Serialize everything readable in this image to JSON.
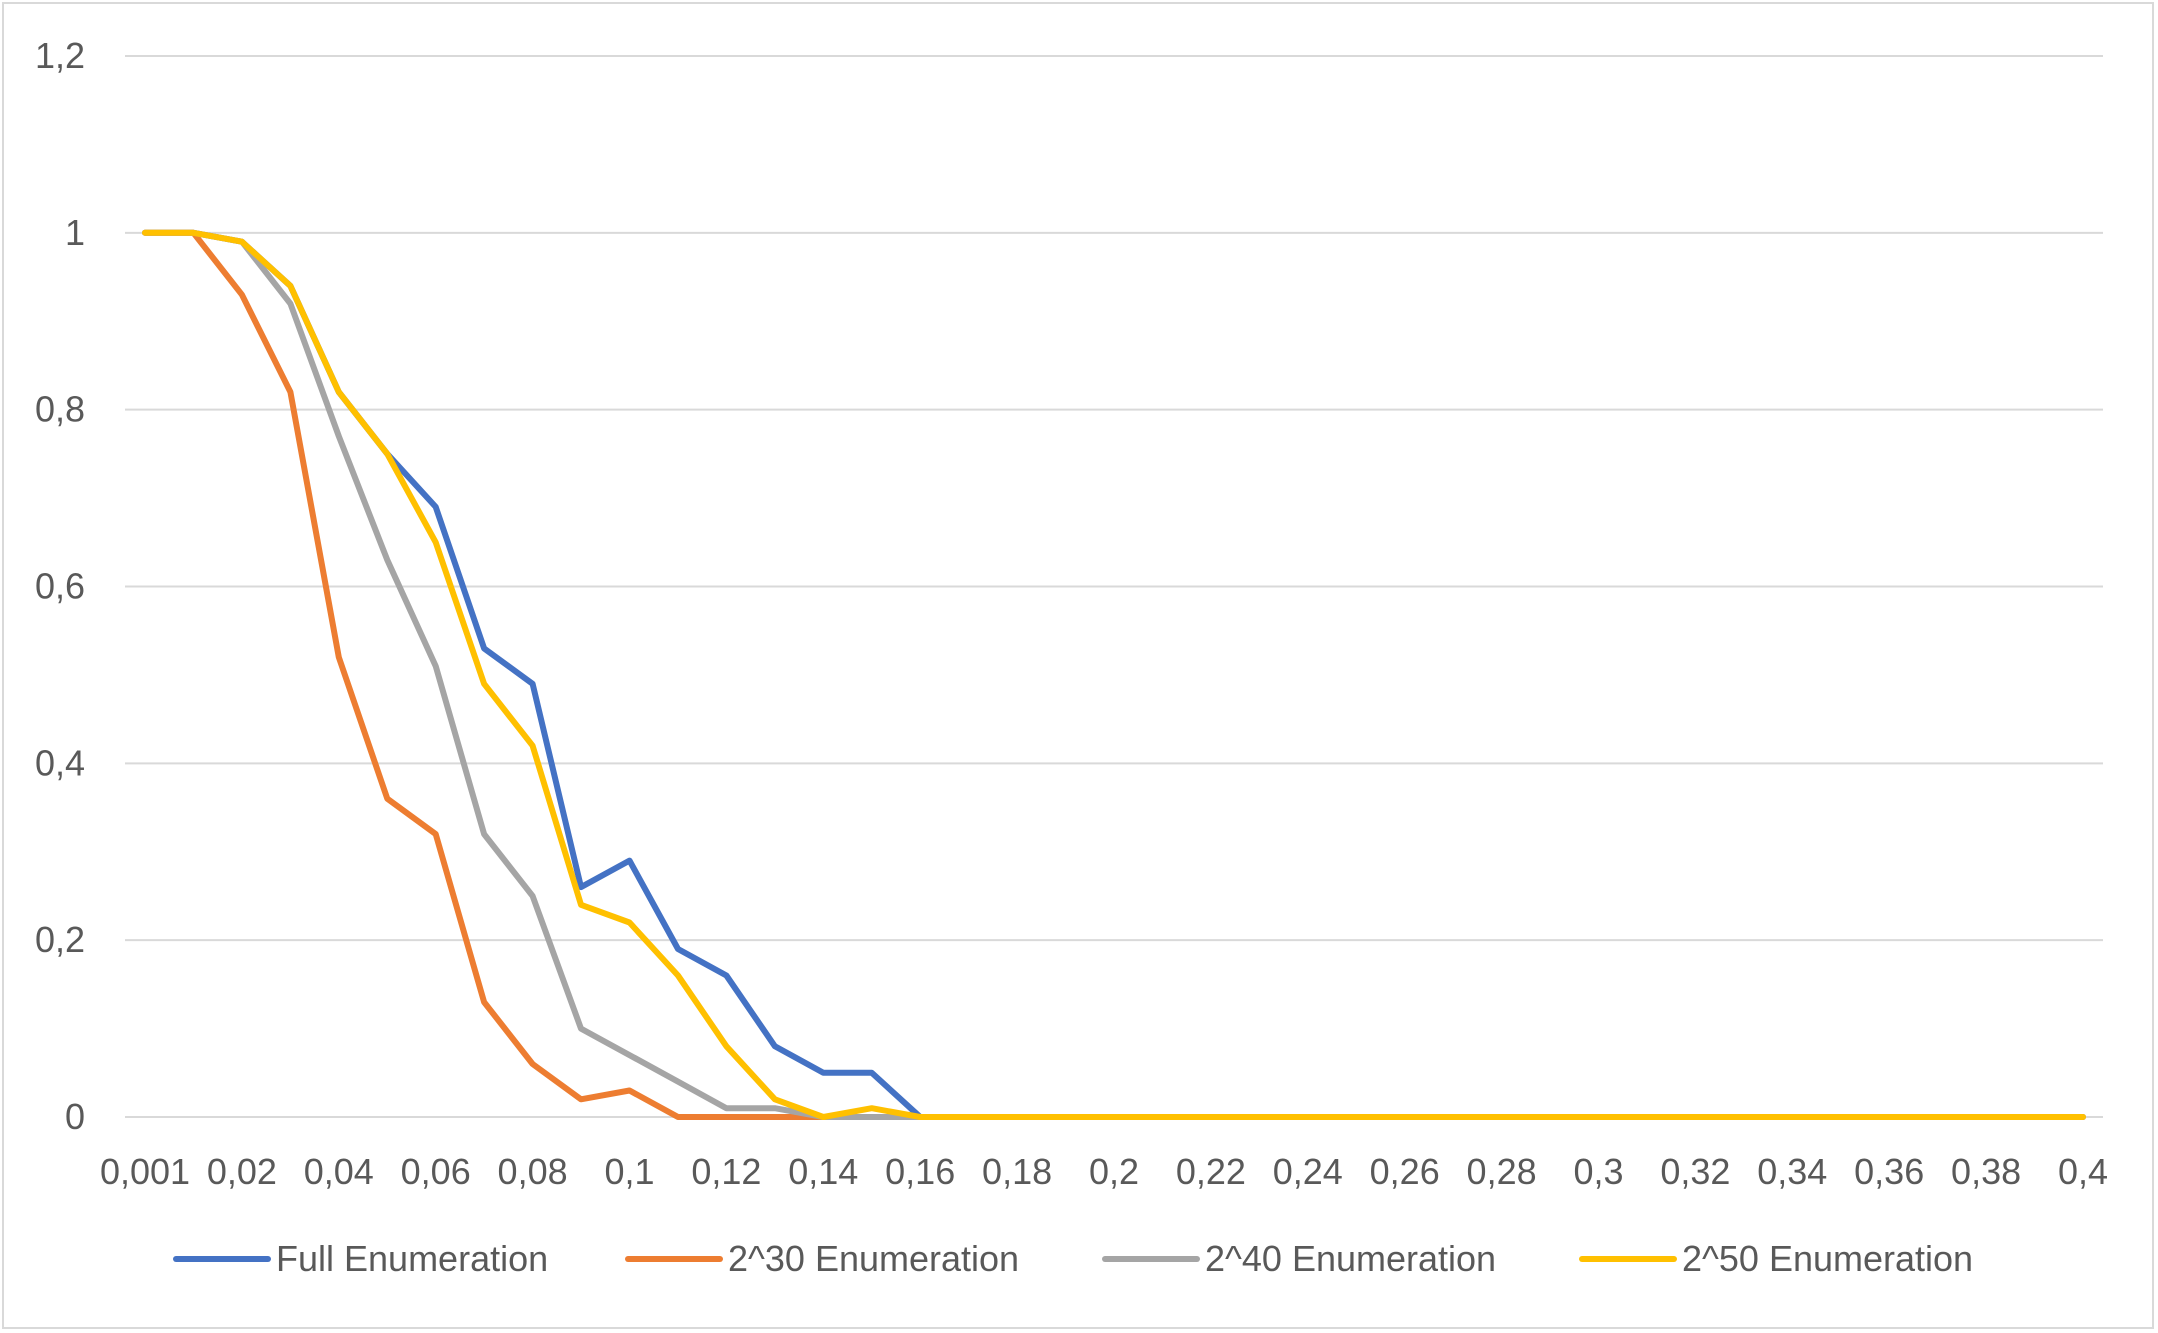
{
  "chart_data": {
    "type": "line",
    "title": "",
    "xlabel": "",
    "ylabel": "",
    "x_tick_labels": [
      "0,001",
      "0,02",
      "0,04",
      "0,06",
      "0,08",
      "0,1",
      "0,12",
      "0,14",
      "0,16",
      "0,18",
      "0,2",
      "0,22",
      "0,24",
      "0,26",
      "0,28",
      "0,3",
      "0,32",
      "0,34",
      "0,36",
      "0,38",
      "0,4"
    ],
    "y_tick_labels": [
      "0",
      "0,2",
      "0,4",
      "0,6",
      "0,8",
      "1",
      "1,2"
    ],
    "y_ticks": [
      0,
      0.2,
      0.4,
      0.6,
      0.8,
      1,
      1.2
    ],
    "ylim": [
      0,
      1.2
    ],
    "grid": "horizontal",
    "legend_position": "bottom",
    "x": [
      0.001,
      0.01,
      0.02,
      0.03,
      0.04,
      0.05,
      0.06,
      0.07,
      0.08,
      0.09,
      0.1,
      0.11,
      0.12,
      0.13,
      0.14,
      0.15,
      0.16,
      0.17,
      0.18,
      0.19,
      0.2,
      0.21,
      0.22,
      0.23,
      0.24,
      0.25,
      0.26,
      0.27,
      0.28,
      0.29,
      0.3,
      0.31,
      0.32,
      0.33,
      0.34,
      0.35,
      0.36,
      0.37,
      0.38,
      0.39,
      0.4
    ],
    "series": [
      {
        "name": "Full Enumeration",
        "color": "#4472c4",
        "values": [
          1,
          1,
          0.99,
          0.94,
          0.82,
          0.75,
          0.69,
          0.53,
          0.49,
          0.26,
          0.29,
          0.19,
          0.16,
          0.08,
          0.05,
          0.05,
          0,
          0,
          0,
          0,
          0,
          0,
          0,
          0,
          0,
          0,
          0,
          0,
          0,
          0,
          0,
          0,
          0,
          0,
          0,
          0,
          0,
          0,
          0,
          0,
          0
        ]
      },
      {
        "name": "2^30 Enumeration",
        "color": "#ed7d31",
        "values": [
          1,
          1,
          0.93,
          0.82,
          0.52,
          0.36,
          0.32,
          0.13,
          0.06,
          0.02,
          0.03,
          0,
          0,
          0,
          0,
          0,
          0,
          0,
          0,
          0,
          0,
          0,
          0,
          0,
          0,
          0,
          0,
          0,
          0,
          0,
          0,
          0,
          0,
          0,
          0,
          0,
          0,
          0,
          0,
          0,
          0
        ]
      },
      {
        "name": "2^40 Enumeration",
        "color": "#a5a5a5",
        "values": [
          1,
          1,
          0.99,
          0.92,
          0.77,
          0.63,
          0.51,
          0.32,
          0.25,
          0.1,
          0.07,
          0.04,
          0.01,
          0.01,
          0,
          0,
          0,
          0,
          0,
          0,
          0,
          0,
          0,
          0,
          0,
          0,
          0,
          0,
          0,
          0,
          0,
          0,
          0,
          0,
          0,
          0,
          0,
          0,
          0,
          0,
          0
        ]
      },
      {
        "name": "2^50 Enumeration",
        "color": "#ffc000",
        "values": [
          1,
          1,
          0.99,
          0.94,
          0.82,
          0.75,
          0.65,
          0.49,
          0.42,
          0.24,
          0.22,
          0.16,
          0.08,
          0.02,
          0,
          0.01,
          0,
          0,
          0,
          0,
          0,
          0,
          0,
          0,
          0,
          0,
          0,
          0,
          0,
          0,
          0,
          0,
          0,
          0,
          0,
          0,
          0,
          0,
          0,
          0,
          0
        ]
      }
    ]
  }
}
